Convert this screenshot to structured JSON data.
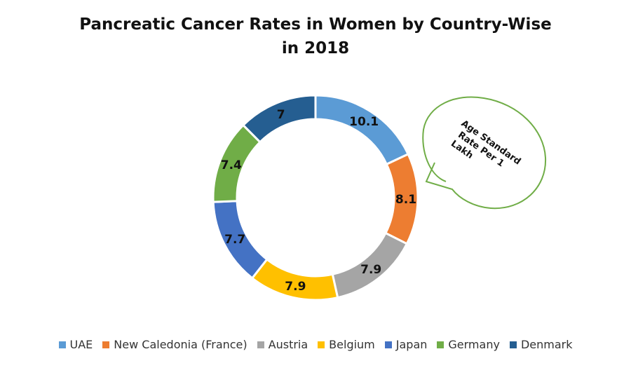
{
  "chart_data": {
    "type": "pie",
    "subtype": "donut",
    "title": "Pancreatic Cancer Rates in Women by Country-Wise in 2018",
    "categories": [
      "UAE",
      "New Caledonia (France)",
      "Austria",
      "Belgium",
      "Japan",
      "Germany",
      "Denmark"
    ],
    "values": [
      10.1,
      8.1,
      7.9,
      7.9,
      7.7,
      7.4,
      7
    ],
    "data_labels": [
      "10.1",
      "8.1",
      "7.9",
      "7.9",
      "7.7",
      "7.4",
      "7"
    ],
    "colors": [
      "#5B9BD5",
      "#ED7D31",
      "#A5A5A5",
      "#FFC000",
      "#4472C4",
      "#70AD47",
      "#255E91"
    ],
    "legend_position": "bottom",
    "annotation": "Age Standard Rate Per 1 Lakh",
    "annotation_lines": [
      "Age Standard",
      "Rate Per 1",
      "Lakh"
    ],
    "annotation_color": "#70AD47"
  }
}
